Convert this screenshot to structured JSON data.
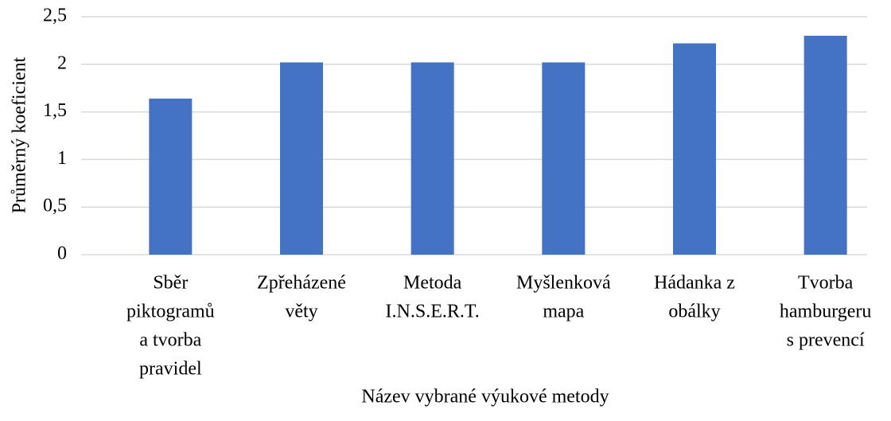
{
  "chart_data": {
    "type": "bar",
    "x_label": "Název vybrané výukové metody",
    "y_label": "Průměrný koeficient",
    "categories": [
      [
        "Sběr",
        "piktogramů",
        "a tvorba",
        "pravidel"
      ],
      [
        "Zpřeházené",
        "věty"
      ],
      [
        "Metoda",
        "I.N.S.E.R.T."
      ],
      [
        "Myšlenková",
        "mapa"
      ],
      [
        "Hádanka z",
        "obálky"
      ],
      [
        "Tvorba",
        "hamburgeru",
        "s prevencí"
      ]
    ],
    "values": [
      1.64,
      2.02,
      2.02,
      2.02,
      2.22,
      2.3
    ],
    "color": "#4472c4",
    "ylim": [
      0,
      2.5
    ],
    "yticks": [
      0,
      {
        "value": 0.5,
        "label": "0,5"
      },
      1,
      {
        "value": 1.5,
        "label": "1,5"
      },
      2,
      {
        "value": 2.5,
        "label": "2,5"
      }
    ],
    "grid": true
  }
}
